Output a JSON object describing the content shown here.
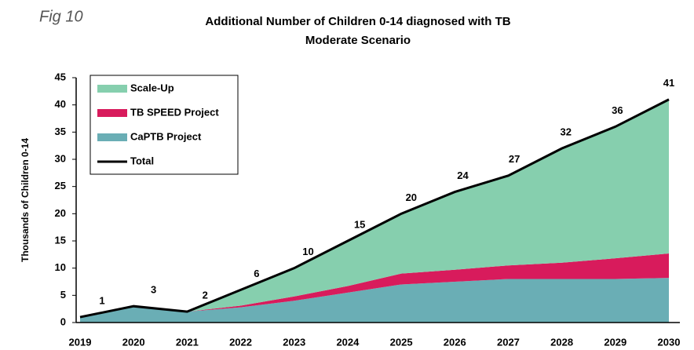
{
  "figure_label": "Fig 10",
  "chart_data": {
    "type": "stacked_area",
    "title": "Additional Number of Children 0-14 diagnosed with TB",
    "subtitle": "Moderate Scenario",
    "y_label": "Thousands of Children 0-14",
    "categories": [
      "2019",
      "2020",
      "2021",
      "2022",
      "2023",
      "2024",
      "2025",
      "2026",
      "2027",
      "2028",
      "2029",
      "2030"
    ],
    "series": [
      {
        "name": "CaPTB Project",
        "color": "#6aaeb5",
        "values": [
          1,
          3,
          2,
          2.8,
          4,
          5.5,
          7,
          7.5,
          8,
          8,
          8,
          8.2
        ]
      },
      {
        "name": "TB SPEED Project",
        "color": "#d81b5c",
        "values": [
          0,
          0,
          0,
          0.3,
          0.8,
          1.2,
          2,
          2.2,
          2.5,
          3,
          3.8,
          4.5
        ]
      },
      {
        "name": "Scale-Up",
        "color": "#86cfae",
        "values": [
          0,
          0,
          0,
          2.9,
          5.2,
          8.3,
          11,
          14.3,
          16.5,
          21,
          24.2,
          28.3
        ]
      }
    ],
    "total": {
      "name": "Total",
      "color": "#000000",
      "values": [
        1,
        3,
        2,
        6,
        10,
        15,
        20,
        24,
        27,
        32,
        36,
        41
      ]
    },
    "ylim": [
      0,
      45
    ],
    "yticks": [
      0,
      5,
      10,
      15,
      20,
      25,
      30,
      35,
      40,
      45
    ],
    "legend": "top-left"
  }
}
